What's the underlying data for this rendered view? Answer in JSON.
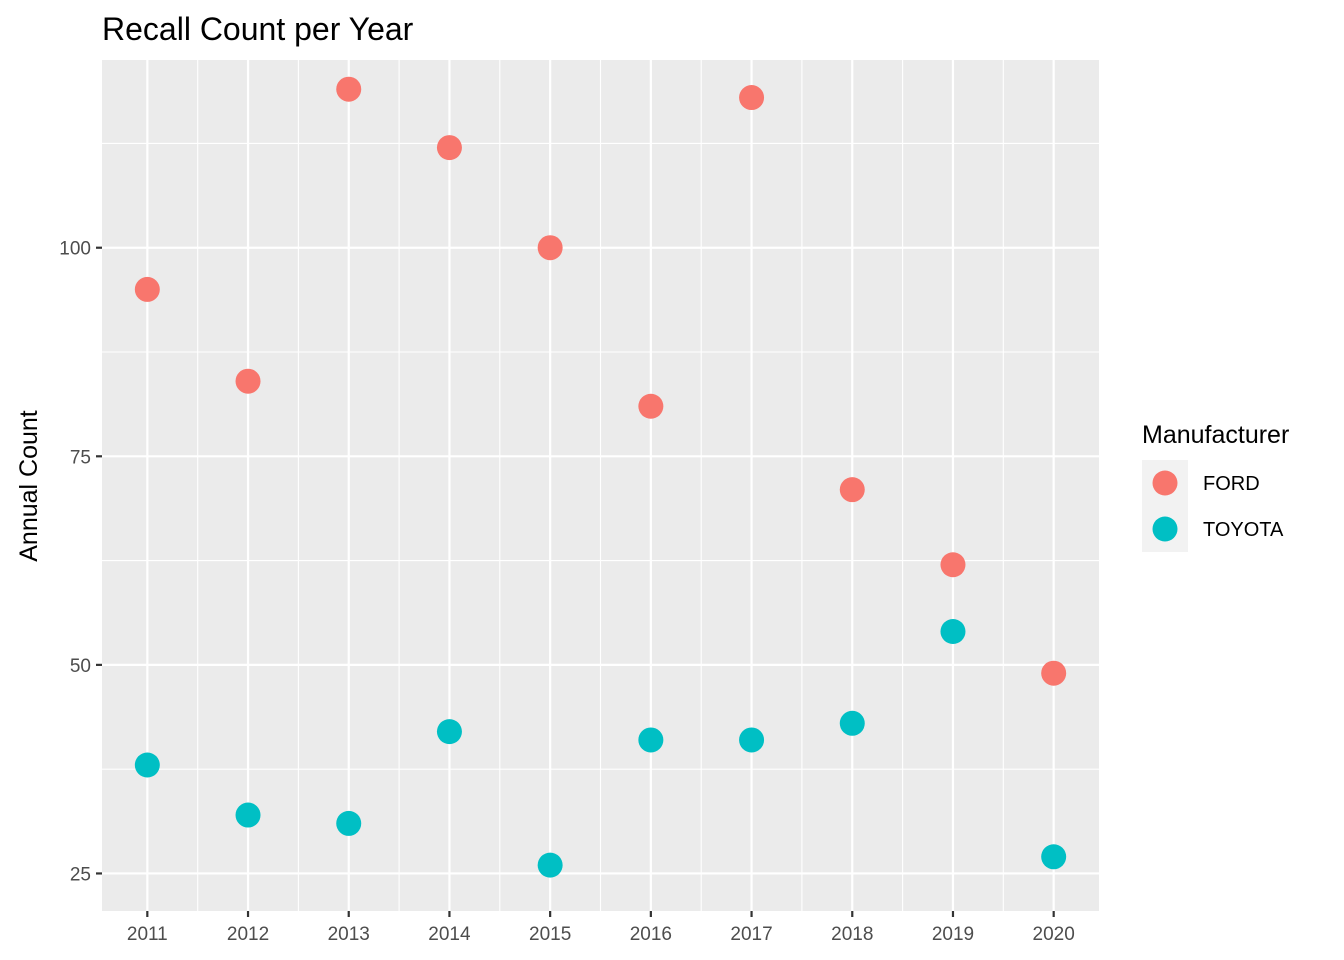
{
  "chart_data": {
    "type": "scatter",
    "title": "Recall Count per Year",
    "xlabel": "",
    "ylabel": "Annual Count",
    "x": [
      2011,
      2012,
      2013,
      2014,
      2015,
      2016,
      2017,
      2018,
      2019,
      2020
    ],
    "x_tick_labels": [
      "2011",
      "2012",
      "2013",
      "2014",
      "2015",
      "2016",
      "2017",
      "2018",
      "2019",
      "2020"
    ],
    "y_ticks": [
      25,
      50,
      75,
      100
    ],
    "y_tick_labels": [
      "25",
      "50",
      "75",
      "100"
    ],
    "ylim": [
      20.5,
      122.5
    ],
    "grid": true,
    "legend": {
      "title": "Manufacturer",
      "position": "right"
    },
    "series": [
      {
        "name": "FORD",
        "color": "#F8766D",
        "values": [
          95,
          84,
          119,
          112,
          100,
          81,
          118,
          71,
          62,
          49
        ]
      },
      {
        "name": "TOYOTA",
        "color": "#00BFC4",
        "values": [
          38,
          32,
          31,
          42,
          26,
          41,
          41,
          43,
          54,
          27
        ]
      }
    ],
    "panel_color": "#EBEBEB",
    "grid_color": "#FFFFFF"
  }
}
